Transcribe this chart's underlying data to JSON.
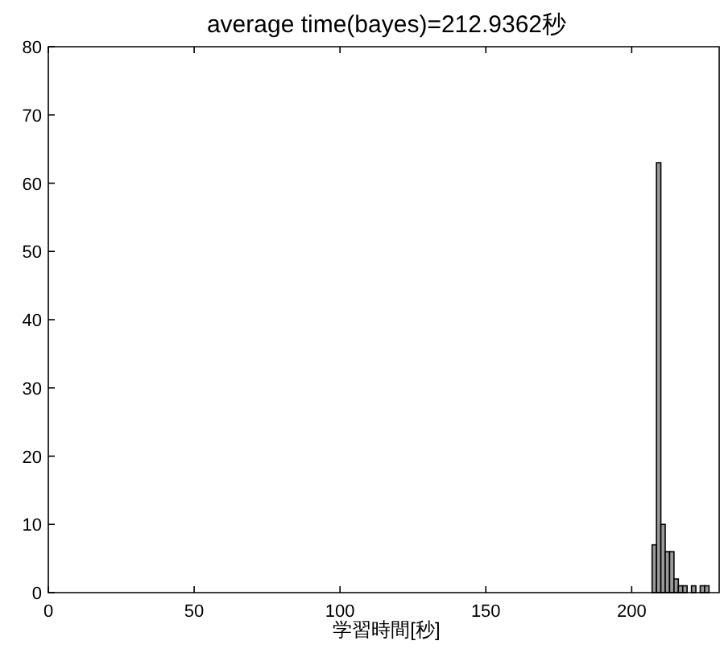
{
  "chart_data": {
    "type": "histogram",
    "title": "average time(bayes)=212.9362秒",
    "xlabel": "学習時間[秒]",
    "bins": [
      207,
      208.5,
      210,
      211.5,
      213,
      214.5,
      216,
      217.5,
      219,
      220.5,
      222,
      223.5,
      225,
      226.5
    ],
    "values": [
      7,
      63,
      10,
      6,
      6,
      2,
      1,
      1,
      0,
      1,
      0,
      1,
      1
    ],
    "color": "#999999",
    "xlim": [
      0,
      230
    ],
    "ylim": [
      0,
      80
    ],
    "xticks": [
      0,
      50,
      100,
      150,
      200
    ],
    "yticks": [
      0,
      10,
      20,
      30,
      40,
      50,
      60,
      70,
      80
    ],
    "grid": false
  }
}
